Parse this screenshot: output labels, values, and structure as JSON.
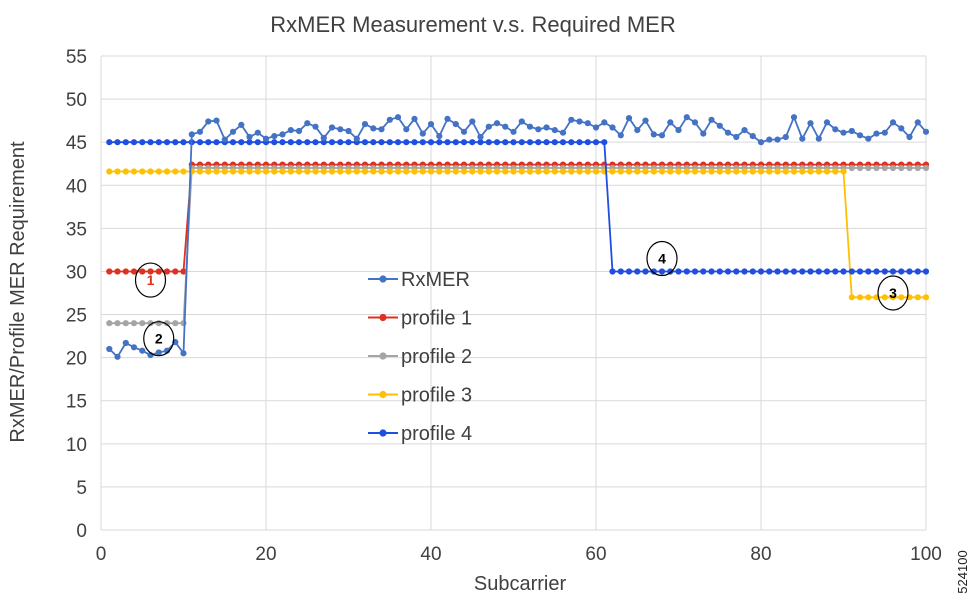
{
  "chart_data": {
    "type": "line",
    "title": "RxMER Measurement v.s.  Required MER",
    "xlabel": "Subcarrier",
    "ylabel": "RxMER/Profile MER Requirement",
    "xlim": [
      0,
      100
    ],
    "ylim": [
      0,
      55
    ],
    "xticks": [
      "0",
      "20",
      "40",
      "60",
      "80",
      "100"
    ],
    "yticks": [
      "0",
      "5",
      "10",
      "15",
      "20",
      "25",
      "30",
      "35",
      "40",
      "45",
      "50",
      "55"
    ],
    "grid": true,
    "legend_position": "center",
    "figure_id": "524100",
    "series": [
      {
        "name": "RxMER",
        "color": "#4472C4",
        "x": [
          1,
          2,
          3,
          4,
          5,
          6,
          7,
          8,
          9,
          10,
          11,
          12,
          13,
          14,
          15,
          16,
          17,
          18,
          19,
          20,
          21,
          22,
          23,
          24,
          25,
          26,
          27,
          28,
          29,
          30,
          31,
          32,
          33,
          34,
          35,
          36,
          37,
          38,
          39,
          40,
          41,
          42,
          43,
          44,
          45,
          46,
          47,
          48,
          49,
          50,
          51,
          52,
          53,
          54,
          55,
          56,
          57,
          58,
          59,
          60,
          61,
          62,
          63,
          64,
          65,
          66,
          67,
          68,
          69,
          70,
          71,
          72,
          73,
          74,
          75,
          76,
          77,
          78,
          79,
          80,
          81,
          82,
          83,
          84,
          85,
          86,
          87,
          88,
          89,
          90,
          91,
          92,
          93,
          94,
          95,
          96,
          97,
          98,
          99,
          100
        ],
        "y": [
          21,
          20.1,
          21.7,
          21.2,
          20.8,
          20.3,
          20.6,
          20.8,
          21.8,
          20.5,
          45.9,
          46.2,
          47.4,
          47.5,
          45.3,
          46.2,
          47,
          45.6,
          46.1,
          45.4,
          45.7,
          45.9,
          46.4,
          46.3,
          47.2,
          46.8,
          45.5,
          46.7,
          46.5,
          46.3,
          45.4,
          47.1,
          46.6,
          46.5,
          47.6,
          47.9,
          46.5,
          47.7,
          46,
          47.1,
          45.7,
          47.7,
          47.1,
          46.2,
          47.4,
          45.6,
          46.8,
          47.2,
          46.8,
          46.2,
          47.4,
          46.8,
          46.5,
          46.7,
          46.4,
          46.1,
          47.6,
          47.4,
          47.2,
          46.7,
          47.3,
          46.7,
          45.8,
          47.8,
          46.4,
          47.5,
          45.9,
          45.8,
          47.3,
          46.4,
          47.9,
          47.3,
          46,
          47.6,
          46.9,
          46.1,
          45.6,
          46.4,
          45.7,
          45,
          45.3,
          45.3,
          45.6,
          47.9,
          45.4,
          47.2,
          45.4,
          47.3,
          46.5,
          46.1,
          46.3,
          45.8,
          45.4,
          46,
          46.1,
          47.3,
          46.6,
          45.6,
          47.3,
          46.2
        ]
      },
      {
        "name": "profile 1",
        "color": "#E03020",
        "segments": [
          {
            "x_from": 1,
            "x_to": 10,
            "y": 30
          },
          {
            "x_from": 11,
            "x_to": 100,
            "y": 42.4
          }
        ]
      },
      {
        "name": "profile 2",
        "color": "#A5A5A5",
        "segments": [
          {
            "x_from": 1,
            "x_to": 10,
            "y": 24
          },
          {
            "x_from": 11,
            "x_to": 100,
            "y": 42
          }
        ]
      },
      {
        "name": "profile 3",
        "color": "#FFC000",
        "segments": [
          {
            "x_from": 1,
            "x_to": 90,
            "y": 41.6
          },
          {
            "x_from": 91,
            "x_to": 100,
            "y": 27
          }
        ]
      },
      {
        "name": "profile 4",
        "color": "#1F4FE0",
        "segments": [
          {
            "x_from": 1,
            "x_to": 61,
            "y": 45
          },
          {
            "x_from": 62,
            "x_to": 100,
            "y": 30
          }
        ]
      }
    ],
    "annotations": [
      {
        "text": "1",
        "x": 6,
        "y": 29,
        "color": "#E03020"
      },
      {
        "text": "2",
        "x": 7,
        "y": 22.2,
        "color": "#000000"
      },
      {
        "text": "4",
        "x": 68,
        "y": 31.5,
        "color": "#000000"
      },
      {
        "text": "3",
        "x": 96,
        "y": 27.5,
        "color": "#000000"
      }
    ]
  }
}
